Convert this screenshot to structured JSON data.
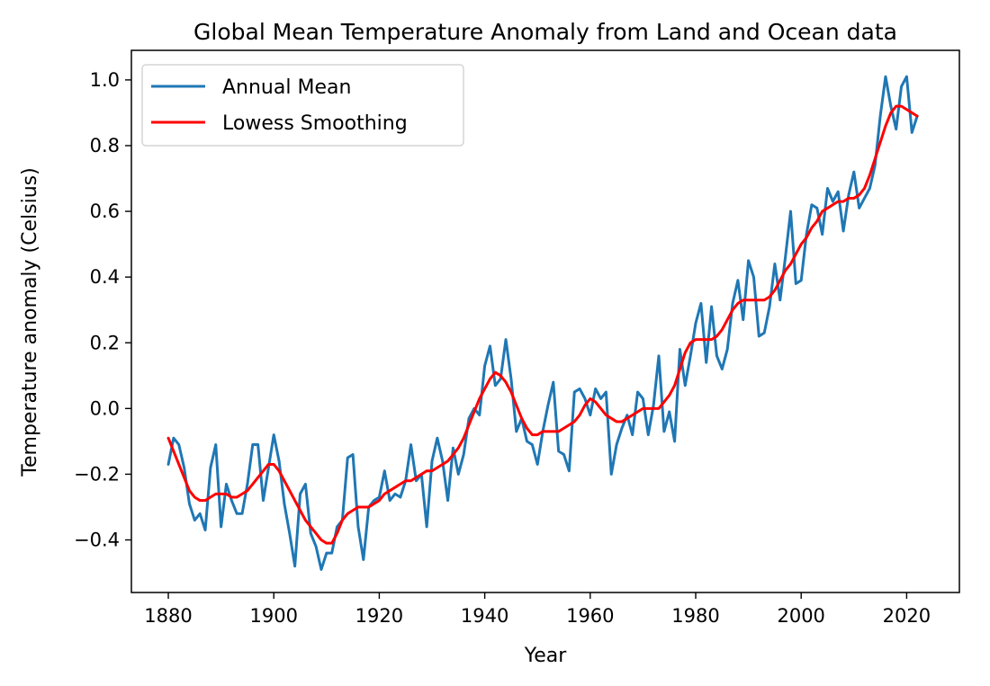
{
  "chart_data": {
    "type": "line",
    "title": "Global Mean Temperature Anomaly from Land and Ocean data",
    "xlabel": "Year",
    "ylabel": "Temperature anomaly (Celsius)",
    "xlim": [
      1873,
      2030
    ],
    "ylim": [
      -0.56,
      1.09
    ],
    "xticks": [
      1880,
      1900,
      1920,
      1940,
      1960,
      1980,
      2000,
      2020
    ],
    "xtick_labels": [
      "1880",
      "1900",
      "1920",
      "1940",
      "1960",
      "1980",
      "2000",
      "2020"
    ],
    "yticks": [
      -0.4,
      -0.2,
      0.0,
      0.2,
      0.4,
      0.6,
      0.8,
      1.0
    ],
    "ytick_labels": [
      "−0.4",
      "−0.2",
      "0.0",
      "0.2",
      "0.4",
      "0.6",
      "0.8",
      "1.0"
    ],
    "grid": false,
    "legend_position": "top-left",
    "start_year": 1880,
    "series": [
      {
        "name": "Annual Mean",
        "color": "#1f77b4",
        "values": [
          -0.17,
          -0.09,
          -0.11,
          -0.18,
          -0.29,
          -0.34,
          -0.32,
          -0.37,
          -0.18,
          -0.11,
          -0.36,
          -0.23,
          -0.28,
          -0.32,
          -0.32,
          -0.23,
          -0.11,
          -0.11,
          -0.28,
          -0.18,
          -0.08,
          -0.16,
          -0.29,
          -0.38,
          -0.48,
          -0.26,
          -0.23,
          -0.38,
          -0.42,
          -0.49,
          -0.44,
          -0.44,
          -0.36,
          -0.34,
          -0.15,
          -0.14,
          -0.36,
          -0.46,
          -0.3,
          -0.28,
          -0.27,
          -0.19,
          -0.28,
          -0.26,
          -0.27,
          -0.22,
          -0.11,
          -0.22,
          -0.2,
          -0.36,
          -0.16,
          -0.09,
          -0.16,
          -0.28,
          -0.12,
          -0.2,
          -0.14,
          -0.03,
          0.0,
          -0.02,
          0.13,
          0.19,
          0.07,
          0.09,
          0.21,
          0.09,
          -0.07,
          -0.03,
          -0.1,
          -0.11,
          -0.17,
          -0.07,
          0.01,
          0.08,
          -0.13,
          -0.14,
          -0.19,
          0.05,
          0.06,
          0.03,
          -0.02,
          0.06,
          0.03,
          0.05,
          -0.2,
          -0.11,
          -0.06,
          -0.02,
          -0.08,
          0.05,
          0.03,
          -0.08,
          0.01,
          0.16,
          -0.07,
          -0.01,
          -0.1,
          0.18,
          0.07,
          0.16,
          0.26,
          0.32,
          0.14,
          0.31,
          0.16,
          0.12,
          0.18,
          0.32,
          0.39,
          0.27,
          0.45,
          0.4,
          0.22,
          0.23,
          0.31,
          0.44,
          0.33,
          0.46,
          0.6,
          0.38,
          0.39,
          0.53,
          0.62,
          0.61,
          0.53,
          0.67,
          0.63,
          0.66,
          0.54,
          0.65,
          0.72,
          0.61,
          0.64,
          0.67,
          0.74,
          0.89,
          1.01,
          0.92,
          0.85,
          0.98,
          1.01,
          0.84,
          0.89
        ]
      },
      {
        "name": "Lowess Smoothing",
        "color": "#ff0000",
        "values": [
          -0.09,
          -0.13,
          -0.17,
          -0.21,
          -0.25,
          -0.27,
          -0.28,
          -0.28,
          -0.27,
          -0.26,
          -0.26,
          -0.26,
          -0.27,
          -0.27,
          -0.26,
          -0.25,
          -0.23,
          -0.21,
          -0.19,
          -0.17,
          -0.17,
          -0.19,
          -0.22,
          -0.25,
          -0.28,
          -0.31,
          -0.34,
          -0.36,
          -0.38,
          -0.4,
          -0.41,
          -0.41,
          -0.38,
          -0.34,
          -0.32,
          -0.31,
          -0.3,
          -0.3,
          -0.3,
          -0.29,
          -0.28,
          -0.26,
          -0.25,
          -0.24,
          -0.23,
          -0.22,
          -0.22,
          -0.21,
          -0.2,
          -0.19,
          -0.19,
          -0.18,
          -0.17,
          -0.16,
          -0.14,
          -0.12,
          -0.09,
          -0.05,
          -0.01,
          0.03,
          0.06,
          0.09,
          0.11,
          0.1,
          0.08,
          0.05,
          0.01,
          -0.03,
          -0.06,
          -0.08,
          -0.08,
          -0.07,
          -0.07,
          -0.07,
          -0.07,
          -0.06,
          -0.05,
          -0.04,
          -0.02,
          0.01,
          0.03,
          0.02,
          0.0,
          -0.02,
          -0.03,
          -0.04,
          -0.04,
          -0.03,
          -0.02,
          -0.01,
          0.0,
          0.0,
          0.0,
          0.0,
          0.02,
          0.04,
          0.07,
          0.12,
          0.17,
          0.2,
          0.21,
          0.21,
          0.21,
          0.21,
          0.22,
          0.24,
          0.27,
          0.3,
          0.32,
          0.33,
          0.33,
          0.33,
          0.33,
          0.33,
          0.34,
          0.36,
          0.39,
          0.42,
          0.44,
          0.47,
          0.5,
          0.52,
          0.55,
          0.57,
          0.6,
          0.61,
          0.62,
          0.63,
          0.63,
          0.64,
          0.64,
          0.65,
          0.67,
          0.71,
          0.76,
          0.81,
          0.86,
          0.9,
          0.92,
          0.92,
          0.91,
          0.9,
          0.89
        ]
      }
    ]
  }
}
